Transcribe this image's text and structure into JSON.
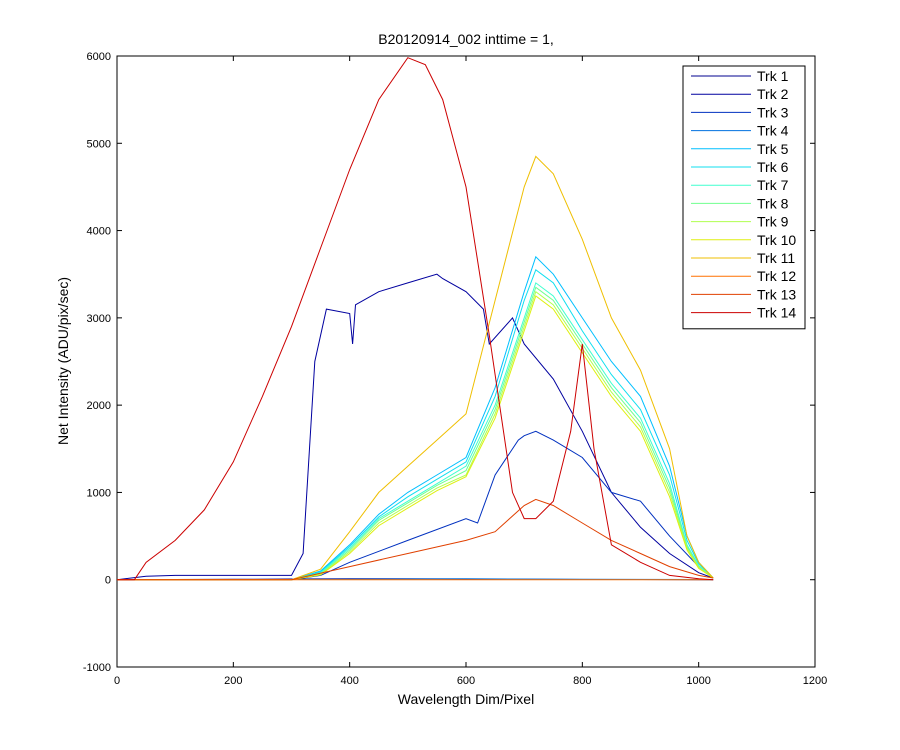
{
  "chart_data": {
    "type": "line",
    "title": "B20120914_002 inttime = 1,",
    "xlabel": "Wavelength Dim/Pixel",
    "ylabel": "Net Intensity (ADU/pix/sec)",
    "xlim": [
      0,
      1200
    ],
    "ylim": [
      -1000,
      6000
    ],
    "xticks": [
      0,
      200,
      400,
      600,
      800,
      1000,
      1200
    ],
    "yticks": [
      -1000,
      0,
      1000,
      2000,
      3000,
      4000,
      5000,
      6000
    ],
    "grid": false,
    "legend_position": "top-right",
    "series": [
      {
        "name": "Trk 1",
        "color": "#00008f",
        "x": [
          0,
          100,
          200,
          300,
          400,
          500,
          600,
          700,
          800,
          900,
          1000,
          1025
        ],
        "y": [
          0,
          2,
          5,
          8,
          10,
          10,
          8,
          5,
          3,
          2,
          0,
          0
        ]
      },
      {
        "name": "Trk 2",
        "color": "#00009f",
        "x": [
          0,
          50,
          100,
          200,
          300,
          320,
          340,
          360,
          400,
          405,
          410,
          450,
          500,
          550,
          560,
          600,
          630,
          640,
          680,
          700,
          750,
          800,
          850,
          900,
          950,
          1000,
          1025
        ],
        "y": [
          0,
          40,
          50,
          50,
          50,
          300,
          2500,
          3100,
          3050,
          2700,
          3150,
          3300,
          3400,
          3500,
          3450,
          3300,
          3100,
          2700,
          3000,
          2700,
          2300,
          1700,
          1000,
          600,
          300,
          80,
          20
        ]
      },
      {
        "name": "Trk 3",
        "color": "#0030bf",
        "x": [
          0,
          300,
          350,
          400,
          500,
          600,
          620,
          650,
          690,
          700,
          720,
          750,
          800,
          850,
          900,
          950,
          1000,
          1025
        ],
        "y": [
          0,
          0,
          50,
          200,
          450,
          700,
          650,
          1200,
          1600,
          1650,
          1700,
          1600,
          1400,
          1000,
          900,
          500,
          150,
          20
        ]
      },
      {
        "name": "Trk 4",
        "color": "#0070df",
        "x": [
          0,
          200,
          400,
          600,
          800,
          1000,
          1025
        ],
        "y": [
          0,
          0,
          5,
          10,
          5,
          2,
          0
        ]
      },
      {
        "name": "Trk 5",
        "color": "#00bfff",
        "x": [
          0,
          300,
          350,
          400,
          450,
          500,
          550,
          600,
          650,
          700,
          720,
          750,
          800,
          850,
          900,
          950,
          980,
          1000,
          1025
        ],
        "y": [
          0,
          0,
          100,
          400,
          750,
          1000,
          1200,
          1400,
          2200,
          3300,
          3700,
          3500,
          3000,
          2500,
          2100,
          1300,
          500,
          200,
          20
        ]
      },
      {
        "name": "Trk 6",
        "color": "#10dfef",
        "x": [
          0,
          300,
          350,
          400,
          450,
          500,
          550,
          600,
          650,
          700,
          720,
          750,
          800,
          850,
          900,
          950,
          980,
          1000,
          1025
        ],
        "y": [
          0,
          0,
          90,
          380,
          720,
          950,
          1150,
          1350,
          2100,
          3200,
          3550,
          3400,
          2850,
          2350,
          1950,
          1200,
          450,
          180,
          20
        ]
      },
      {
        "name": "Trk 7",
        "color": "#40ffcf",
        "x": [
          0,
          300,
          350,
          400,
          450,
          500,
          550,
          600,
          650,
          700,
          720,
          750,
          800,
          850,
          900,
          950,
          980,
          1000,
          1025
        ],
        "y": [
          0,
          0,
          80,
          360,
          700,
          900,
          1100,
          1300,
          2000,
          3000,
          3400,
          3250,
          2750,
          2250,
          1850,
          1100,
          400,
          160,
          20
        ]
      },
      {
        "name": "Trk 8",
        "color": "#70ff8f",
        "x": [
          0,
          300,
          350,
          400,
          450,
          500,
          550,
          600,
          650,
          700,
          720,
          750,
          800,
          850,
          900,
          950,
          980,
          1000,
          1025
        ],
        "y": [
          0,
          0,
          70,
          340,
          680,
          880,
          1080,
          1250,
          1950,
          2950,
          3350,
          3200,
          2700,
          2200,
          1800,
          1050,
          380,
          150,
          20
        ]
      },
      {
        "name": "Trk 9",
        "color": "#b0ff4f",
        "x": [
          0,
          300,
          350,
          400,
          450,
          500,
          550,
          600,
          650,
          700,
          720,
          750,
          800,
          850,
          900,
          950,
          980,
          1000,
          1025
        ],
        "y": [
          0,
          0,
          60,
          320,
          650,
          850,
          1050,
          1200,
          1900,
          2900,
          3300,
          3150,
          2650,
          2150,
          1750,
          1000,
          360,
          140,
          20
        ]
      },
      {
        "name": "Trk 10",
        "color": "#dfef10",
        "x": [
          0,
          300,
          350,
          400,
          450,
          500,
          550,
          600,
          650,
          700,
          720,
          750,
          800,
          850,
          900,
          950,
          980,
          1000,
          1025
        ],
        "y": [
          0,
          0,
          55,
          300,
          620,
          820,
          1020,
          1180,
          1850,
          2850,
          3250,
          3100,
          2600,
          2100,
          1700,
          950,
          340,
          130,
          20
        ]
      },
      {
        "name": "Trk 11",
        "color": "#efbf00",
        "x": [
          0,
          300,
          350,
          400,
          450,
          500,
          550,
          600,
          650,
          700,
          720,
          750,
          800,
          850,
          900,
          950,
          980,
          1000,
          1025
        ],
        "y": [
          0,
          0,
          120,
          550,
          1000,
          1300,
          1600,
          1900,
          3200,
          4500,
          4850,
          4650,
          3900,
          3000,
          2400,
          1500,
          500,
          200,
          20
        ]
      },
      {
        "name": "Trk 12",
        "color": "#ff7000",
        "x": [
          0,
          1025
        ],
        "y": [
          0,
          0
        ]
      },
      {
        "name": "Trk 13",
        "color": "#e04000",
        "x": [
          0,
          300,
          400,
          500,
          600,
          650,
          700,
          720,
          750,
          800,
          850,
          900,
          950,
          1000,
          1025
        ],
        "y": [
          0,
          0,
          150,
          300,
          450,
          550,
          850,
          920,
          850,
          650,
          450,
          300,
          150,
          50,
          20
        ]
      },
      {
        "name": "Trk 14",
        "color": "#cc0000",
        "x": [
          0,
          30,
          50,
          100,
          150,
          200,
          250,
          300,
          350,
          400,
          450,
          500,
          530,
          560,
          600,
          640,
          680,
          700,
          720,
          750,
          780,
          800,
          820,
          850,
          900,
          950,
          1000,
          1025
        ],
        "y": [
          0,
          0,
          200,
          450,
          800,
          1350,
          2100,
          2900,
          3800,
          4700,
          5500,
          5980,
          5900,
          5500,
          4500,
          2800,
          1000,
          700,
          700,
          900,
          1700,
          2700,
          1500,
          400,
          200,
          50,
          10,
          0
        ]
      }
    ]
  }
}
